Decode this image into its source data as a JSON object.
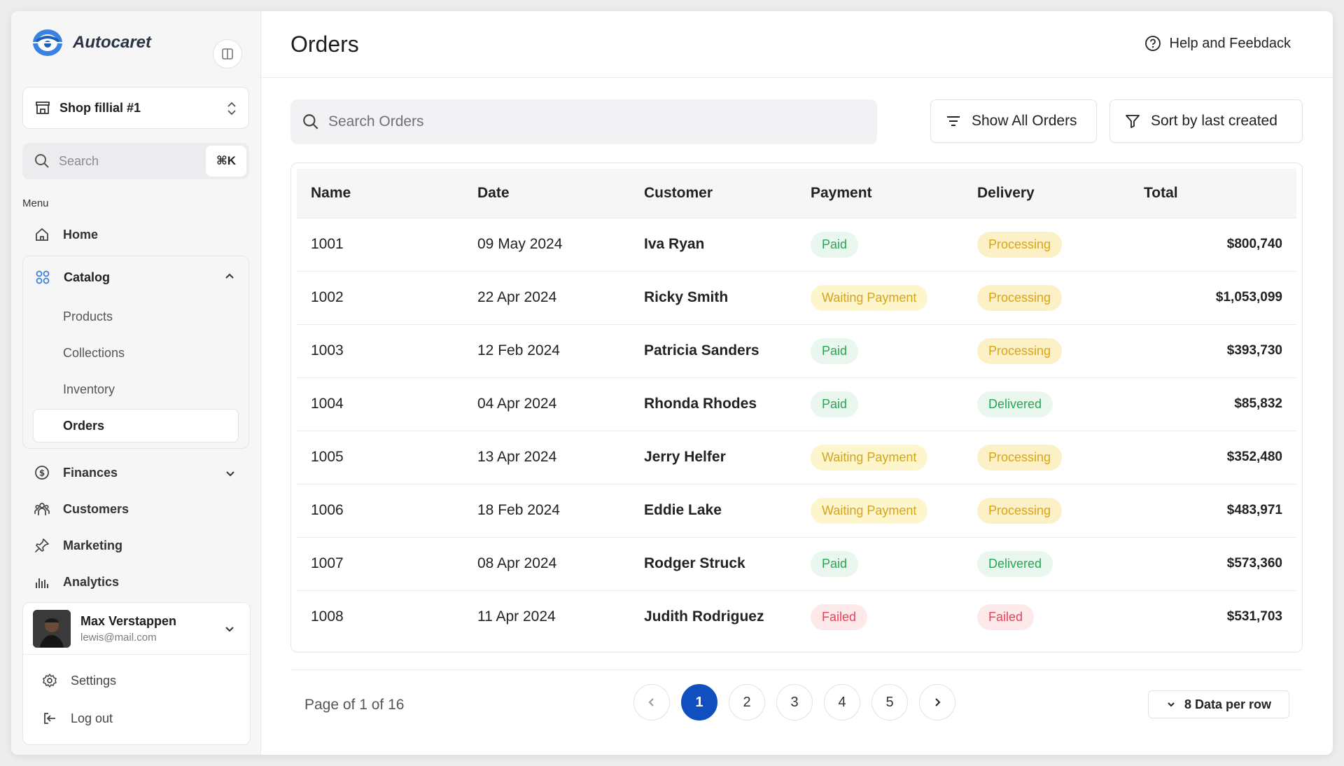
{
  "app": {
    "name": "Autocaret"
  },
  "sidebar": {
    "shop": "Shop fillial #1",
    "search_placeholder": "Search",
    "shortcut": "⌘K",
    "menu_label": "Menu",
    "home": "Home",
    "catalog": {
      "label": "Catalog",
      "items": [
        "Products",
        "Collections",
        "Inventory",
        "Orders"
      ]
    },
    "finances": "Finances",
    "customers": "Customers",
    "marketing": "Marketing",
    "analytics": "Analytics",
    "user": {
      "name": "Max Verstappen",
      "email": "lewis@mail.com"
    },
    "settings": "Settings",
    "logout": "Log out"
  },
  "header": {
    "title": "Orders",
    "help": "Help and Feebdack"
  },
  "toolbar": {
    "search_placeholder": "Search Orders",
    "show_all": "Show All Orders",
    "sort": "Sort by last created"
  },
  "table": {
    "headers": [
      "Name",
      "Date",
      "Customer",
      "Payment",
      "Delivery",
      "Total"
    ],
    "rows": [
      {
        "name": "1001",
        "date": "09 May 2024",
        "customer": "Iva Ryan",
        "payment": "Paid",
        "delivery": "Processing",
        "total": "$800,740"
      },
      {
        "name": "1002",
        "date": "22 Apr 2024",
        "customer": "Ricky Smith",
        "payment": "Waiting Payment",
        "delivery": "Processing",
        "total": "$1,053,099"
      },
      {
        "name": "1003",
        "date": "12 Feb 2024",
        "customer": "Patricia Sanders",
        "payment": "Paid",
        "delivery": "Processing",
        "total": "$393,730"
      },
      {
        "name": "1004",
        "date": "04 Apr 2024",
        "customer": "Rhonda Rhodes",
        "payment": "Paid",
        "delivery": "Delivered",
        "total": "$85,832"
      },
      {
        "name": "1005",
        "date": "13 Apr 2024",
        "customer": "Jerry Helfer",
        "payment": "Waiting Payment",
        "delivery": "Processing",
        "total": "$352,480"
      },
      {
        "name": "1006",
        "date": "18 Feb 2024",
        "customer": "Eddie Lake",
        "payment": "Waiting Payment",
        "delivery": "Processing",
        "total": "$483,971"
      },
      {
        "name": "1007",
        "date": "08 Apr 2024",
        "customer": "Rodger Struck",
        "payment": "Paid",
        "delivery": "Delivered",
        "total": "$573,360"
      },
      {
        "name": "1008",
        "date": "11 Apr 2024",
        "customer": "Judith Rodriguez",
        "payment": "Failed",
        "delivery": "Failed",
        "total": "$531,703"
      }
    ]
  },
  "pagination": {
    "info": "Page of 1 of 16",
    "pages": [
      "1",
      "2",
      "3",
      "4",
      "5"
    ],
    "current": "1",
    "per_row": "8 Data per row"
  },
  "colors": {
    "accent": "#0f4fbf",
    "brand": "#2f74d0"
  }
}
